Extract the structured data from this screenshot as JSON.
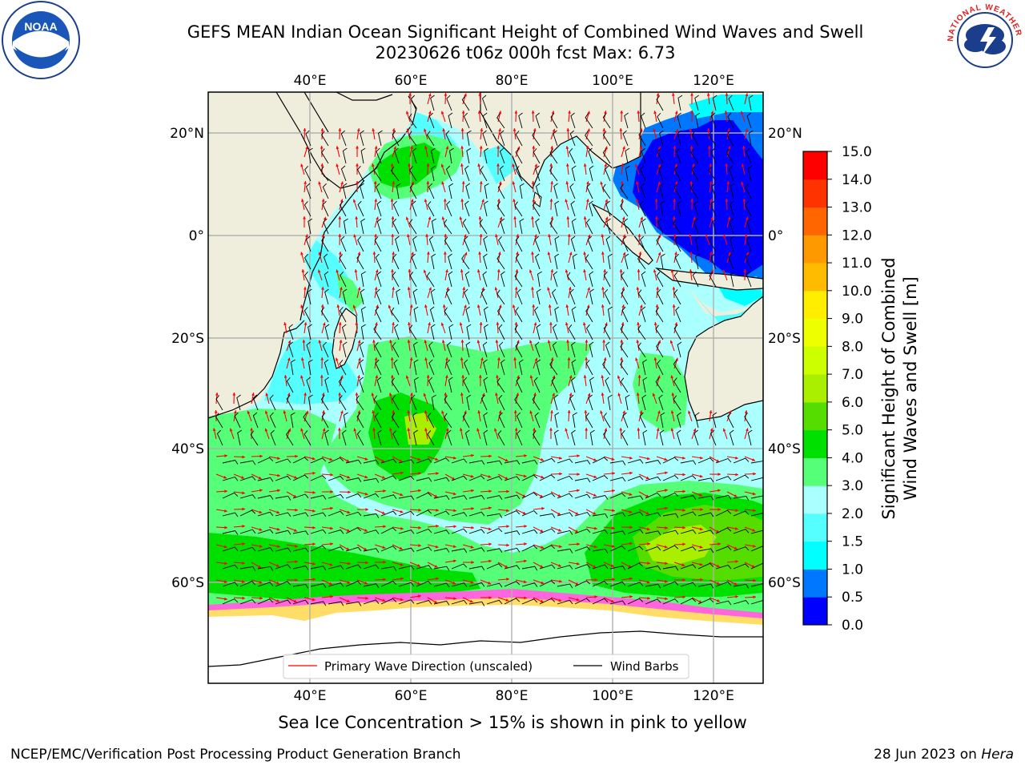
{
  "header": {
    "title_line1": "GEFS MEAN Indian Ocean Significant Height of Combined Wind Waves and Swell",
    "title_line2": "20230626 t06z 000h fcst   Max: 6.73"
  },
  "map": {
    "top_lon_labels": [
      "40°E",
      "60°E",
      "80°E",
      "100°E",
      "120°E"
    ],
    "bottom_lon_labels": [
      "40°E",
      "60°E",
      "80°E",
      "100°E",
      "120°E"
    ],
    "left_lat_labels": [
      "20°N",
      "0°",
      "20°S",
      "40°S",
      "60°S"
    ],
    "right_lat_labels": [
      "20°N",
      "0°",
      "20°S",
      "40°S",
      "60°S"
    ],
    "legend": {
      "wave_direction": "Primary Wave Direction (unscaled)",
      "wind_barbs": "Wind Barbs"
    },
    "colors": {
      "land": "#efeedd",
      "sea_ice": "#ffffff",
      "wave_arrow": "#ff0000",
      "wind_barb": "#000000"
    }
  },
  "colorbar": {
    "label_line1": "Significant Height of Combined",
    "label_line2": "Wind Waves and Swell [m]",
    "ticks": [
      "0.0",
      "0.5",
      "1.0",
      "1.5",
      "2.0",
      "3.0",
      "4.0",
      "5.0",
      "6.0",
      "7.0",
      "8.0",
      "9.0",
      "10.0",
      "11.0",
      "12.0",
      "13.0",
      "14.0",
      "15.0"
    ],
    "colors": [
      "#0000ff",
      "#0077ff",
      "#00ffff",
      "#55ffff",
      "#aaffff",
      "#55ff77",
      "#00e000",
      "#55dd00",
      "#aaee00",
      "#ccff00",
      "#eeff00",
      "#ffee00",
      "#ffbb00",
      "#ff9900",
      "#ff6600",
      "#ff3300",
      "#ff0000"
    ]
  },
  "logos": {
    "left_text": "NOAA",
    "right_text": "NATIONAL WEATHER SERVICE"
  },
  "caption": "Sea Ice Concentration > 15% is shown in pink to yellow",
  "footer": {
    "left": "NCEP/EMC/Verification Post Processing Product Generation Branch",
    "right_prefix": "28 Jun 2023 on ",
    "right_host": "Hera"
  }
}
